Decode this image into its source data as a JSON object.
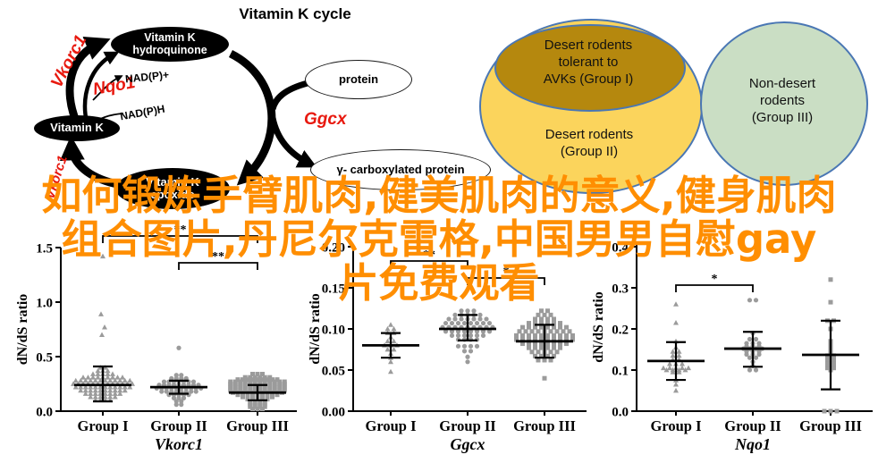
{
  "diagram": {
    "title": "Vitamin K cycle",
    "nodes": {
      "vitamin_k": "Vitamin K",
      "hydroquinone_l1": "Vitamin K",
      "hydroquinone_l2": "hydroquinone",
      "epoxide_l1": "Vitamin K",
      "epoxide_l2": "epoxide",
      "protein": "protein",
      "carboxylated": "γ- carboxylated protein"
    },
    "enzymes": {
      "vkorc1_top": "Vkorc1",
      "nqo1": "Nqo1",
      "ggcx": "Ggcx",
      "vkorc1_bottom": "Vkorc1"
    },
    "cofactors": {
      "nadp_plus": "NAD(P)+",
      "nadph": "NAD(P)H"
    },
    "colors": {
      "node_fill": "#000000",
      "node_text": "#ffffff",
      "enzyme_text": "#e8190f"
    }
  },
  "venn": {
    "group1": {
      "lines": [
        "Desert rodents",
        "tolerant to",
        "AVKs (Group I)"
      ],
      "fill": "#b5880e",
      "border": "#4a77b4"
    },
    "group2": {
      "lines": [
        "Desert rodents",
        "(Group II)"
      ],
      "fill": "#fbd45c",
      "border": "#4a77b4"
    },
    "group3": {
      "lines": [
        "Non-desert",
        "rodents",
        "(Group III)"
      ],
      "fill": "#cadec4",
      "border": "#4a77b4"
    }
  },
  "overlay_text": {
    "color": "#ff8e01",
    "lines": [
      "如何锻炼手臂肌肉,健美肌肉的意义,健身肌肉",
      "组合图片,丹尼尔克雷格,中国男男自慰gay",
      "片免费观看"
    ]
  },
  "chart_data": [
    {
      "type": "scatter",
      "variant": "beeswarm-dotplot",
      "title": "Vkorc1",
      "ylabel": "dN/dS ratio",
      "categories": [
        "Group I",
        "Group II",
        "Group III"
      ],
      "marker_shapes": [
        "triangle",
        "circle",
        "square"
      ],
      "ylim": [
        0,
        1.5
      ],
      "yticks": [
        0,
        0.5,
        1.0,
        1.5
      ],
      "ytick_labels": [
        "0.0",
        "0.5",
        "1.0",
        "1.5"
      ],
      "point_color": "#9b9b9b",
      "groups": [
        {
          "name": "Group I",
          "mean": 0.24,
          "err_lo": 0.09,
          "err_hi": 0.41,
          "swarm_rows": [
            [
              0.4,
              2
            ],
            [
              0.37,
              3
            ],
            [
              0.34,
              5
            ],
            [
              0.31,
              9
            ],
            [
              0.28,
              12
            ],
            [
              0.25,
              13
            ],
            [
              0.22,
              12
            ],
            [
              0.19,
              10
            ],
            [
              0.16,
              8
            ],
            [
              0.13,
              6
            ],
            [
              0.1,
              4
            ]
          ],
          "outliers": [
            1.42,
            0.89,
            0.77,
            0.7
          ]
        },
        {
          "name": "Group II",
          "mean": 0.22,
          "err_lo": 0.16,
          "err_hi": 0.28,
          "swarm_rows": [
            [
              0.33,
              2
            ],
            [
              0.3,
              4
            ],
            [
              0.27,
              7
            ],
            [
              0.24,
              9
            ],
            [
              0.21,
              10
            ],
            [
              0.18,
              8
            ],
            [
              0.15,
              5
            ],
            [
              0.12,
              3
            ],
            [
              0.09,
              2
            ],
            [
              0.06,
              2
            ]
          ],
          "outliers": [
            0.58
          ]
        },
        {
          "name": "Group III",
          "mean": 0.17,
          "err_lo": 0.1,
          "err_hi": 0.24,
          "swarm_rows": [
            [
              0.34,
              3
            ],
            [
              0.31,
              6
            ],
            [
              0.29,
              9
            ],
            [
              0.27,
              12
            ],
            [
              0.25,
              12
            ],
            [
              0.23,
              12
            ],
            [
              0.21,
              12
            ],
            [
              0.19,
              12
            ],
            [
              0.17,
              11
            ],
            [
              0.15,
              9
            ],
            [
              0.13,
              7
            ],
            [
              0.11,
              5
            ],
            [
              0.08,
              4
            ],
            [
              0.06,
              4
            ],
            [
              0.04,
              4
            ],
            [
              0.02,
              3
            ]
          ],
          "outliers": []
        }
      ],
      "significance": [
        {
          "from": 0,
          "to": 2,
          "label": "**"
        },
        {
          "from": 1,
          "to": 2,
          "label": "**"
        }
      ]
    },
    {
      "type": "scatter",
      "variant": "beeswarm-dotplot",
      "title": "Ggcx",
      "ylabel": "dN/dS ratio",
      "categories": [
        "Group I",
        "Group II",
        "Group III"
      ],
      "marker_shapes": [
        "triangle",
        "circle",
        "square"
      ],
      "ylim": [
        0,
        0.2
      ],
      "yticks": [
        0,
        0.05,
        0.1,
        0.15,
        0.2
      ],
      "ytick_labels": [
        "0.00",
        "0.05",
        "0.10",
        "0.15",
        "0.20"
      ],
      "point_color": "#9b9b9b",
      "groups": [
        {
          "name": "Group I",
          "mean": 0.08,
          "err_lo": 0.065,
          "err_hi": 0.095,
          "swarm_rows": [
            [
              0.105,
              1
            ],
            [
              0.1,
              2
            ],
            [
              0.095,
              2
            ],
            [
              0.09,
              1
            ],
            [
              0.085,
              2
            ],
            [
              0.08,
              3
            ],
            [
              0.075,
              2
            ],
            [
              0.07,
              1
            ],
            [
              0.065,
              1
            ],
            [
              0.06,
              1
            ],
            [
              0.048,
              1
            ]
          ],
          "outliers": []
        },
        {
          "name": "Group II",
          "mean": 0.1,
          "err_lo": 0.086,
          "err_hi": 0.117,
          "swarm_rows": [
            [
              0.122,
              3
            ],
            [
              0.117,
              5
            ],
            [
              0.112,
              7
            ],
            [
              0.107,
              8
            ],
            [
              0.102,
              9
            ],
            [
              0.097,
              8
            ],
            [
              0.092,
              6
            ],
            [
              0.087,
              4
            ],
            [
              0.079,
              4
            ],
            [
              0.073,
              2
            ],
            [
              0.066,
              1
            ],
            [
              0.06,
              1
            ]
          ],
          "outliers": []
        },
        {
          "name": "Group III",
          "mean": 0.085,
          "err_lo": 0.065,
          "err_hi": 0.105,
          "swarm_rows": [
            [
              0.122,
              2
            ],
            [
              0.117,
              3
            ],
            [
              0.112,
              4
            ],
            [
              0.107,
              6
            ],
            [
              0.102,
              8
            ],
            [
              0.097,
              9
            ],
            [
              0.092,
              10
            ],
            [
              0.087,
              10
            ],
            [
              0.082,
              8
            ],
            [
              0.077,
              6
            ],
            [
              0.072,
              5
            ],
            [
              0.067,
              4
            ],
            [
              0.062,
              3
            ],
            [
              0.04,
              1
            ]
          ],
          "outliers": []
        }
      ],
      "significance": [
        {
          "from": 0,
          "to": 1,
          "label": "**"
        },
        {
          "from": 1,
          "to": 2,
          "label": "*"
        }
      ]
    },
    {
      "type": "scatter",
      "variant": "beeswarm-dotplot",
      "title": "Nqo1",
      "ylabel": "dN/dS ratio",
      "categories": [
        "Group I",
        "Group II",
        "Group III"
      ],
      "marker_shapes": [
        "triangle",
        "circle",
        "square"
      ],
      "ylim": [
        0,
        0.4
      ],
      "yticks": [
        0,
        0.1,
        0.2,
        0.3,
        0.4
      ],
      "ytick_labels": [
        "0.0",
        "0.1",
        "0.2",
        "0.3",
        "0.4"
      ],
      "point_color": "#9b9b9b",
      "groups": [
        {
          "name": "Group I",
          "mean": 0.122,
          "err_lo": 0.076,
          "err_hi": 0.168,
          "swarm_rows": [
            [
              0.26,
              1
            ],
            [
              0.215,
              1
            ],
            [
              0.17,
              1
            ],
            [
              0.155,
              1
            ],
            [
              0.145,
              2
            ],
            [
              0.135,
              2
            ],
            [
              0.125,
              2
            ],
            [
              0.115,
              3
            ],
            [
              0.105,
              5
            ],
            [
              0.1,
              4
            ],
            [
              0.095,
              2
            ],
            [
              0.075,
              1
            ],
            [
              0.065,
              1
            ],
            [
              0.05,
              1
            ]
          ],
          "outliers": []
        },
        {
          "name": "Group II",
          "mean": 0.152,
          "err_lo": 0.108,
          "err_hi": 0.193,
          "swarm_rows": [
            [
              0.27,
              2
            ],
            [
              0.19,
              1
            ],
            [
              0.175,
              2
            ],
            [
              0.165,
              3
            ],
            [
              0.158,
              3
            ],
            [
              0.152,
              4
            ],
            [
              0.145,
              3
            ],
            [
              0.138,
              3
            ],
            [
              0.13,
              2
            ],
            [
              0.12,
              1
            ],
            [
              0.11,
              1
            ],
            [
              0.1,
              2
            ]
          ],
          "outliers": []
        },
        {
          "name": "Group III",
          "mean": 0.137,
          "err_lo": 0.053,
          "err_hi": 0.22,
          "swarm_rows": [
            [
              0.32,
              1
            ],
            [
              0.265,
              1
            ],
            [
              0.22,
              2
            ],
            [
              0.2,
              1
            ],
            [
              0.17,
              1
            ],
            [
              0.16,
              1
            ],
            [
              0.15,
              1
            ],
            [
              0.145,
              1
            ],
            [
              0.135,
              2
            ],
            [
              0.125,
              2
            ],
            [
              0.115,
              2
            ],
            [
              0.105,
              2
            ],
            [
              0.1,
              1
            ],
            [
              0.0,
              3
            ]
          ],
          "outliers": []
        }
      ],
      "significance": [
        {
          "from": 0,
          "to": 1,
          "label": "*"
        }
      ]
    }
  ]
}
